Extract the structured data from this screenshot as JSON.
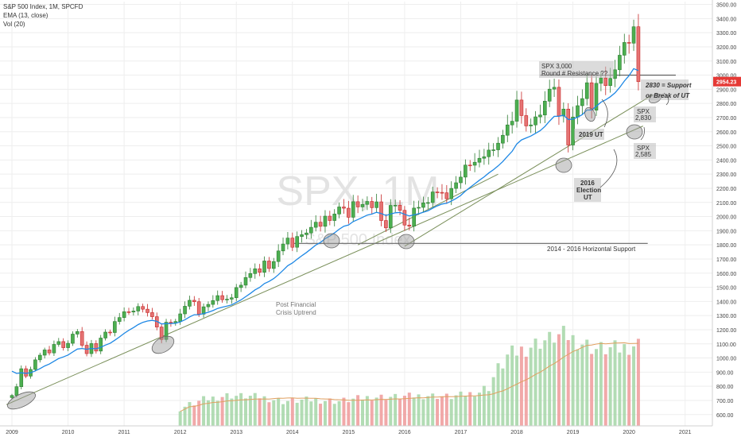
{
  "header": {
    "symbol_line": "S&P 500 Index, 1M, SPCFD",
    "ema_line": "EMA (13, close)",
    "vol_line": "Vol (20)"
  },
  "watermark": {
    "main": "SPX, 1M",
    "sub": "S&P 500 Index"
  },
  "colors": {
    "up": "#2e7d32",
    "up_fill": "#4caf50",
    "down": "#c62828",
    "down_fill": "#e57373",
    "ema": "#1e88e5",
    "trend": "#7a8f5a",
    "vol_up": "#a5d6a7",
    "vol_down": "#ef9a9a",
    "vol_ma": "#e0a060",
    "price_tag": "#e53935",
    "grid": "#eeeeee"
  },
  "chart_data": {
    "type": "candlestick",
    "y_ticks": [
      "600.00",
      "700.00",
      "800.00",
      "900.00",
      "1000.00",
      "1100.00",
      "1200.00",
      "1300.00",
      "1400.00",
      "1500.00",
      "1600.00",
      "1700.00",
      "1800.00",
      "1900.00",
      "2000.00",
      "2100.00",
      "2200.00",
      "2300.00",
      "2400.00",
      "2500.00",
      "2600.00",
      "2700.00",
      "2800.00",
      "2900.00",
      "3000.00",
      "3100.00",
      "3200.00",
      "3300.00",
      "3400.00",
      "3500.00"
    ],
    "x_ticks": [
      "2009",
      "2010",
      "2011",
      "2012",
      "2013",
      "2014",
      "2015",
      "2016",
      "2017",
      "2018",
      "2019",
      "2020",
      "2021"
    ],
    "last_price": "2954.23",
    "ylim": [
      520,
      3520
    ],
    "closes": [
      735,
      797,
      924,
      872,
      919,
      987,
      1020,
      1057,
      1036,
      1096,
      1116,
      1073,
      1104,
      1169,
      1187,
      1090,
      1031,
      1102,
      1049,
      1141,
      1183,
      1180,
      1258,
      1286,
      1327,
      1325,
      1332,
      1364,
      1345,
      1321,
      1292,
      1219,
      1131,
      1253,
      1247,
      1258,
      1312,
      1366,
      1408,
      1398,
      1310,
      1362,
      1379,
      1406,
      1441,
      1412,
      1416,
      1426,
      1498,
      1515,
      1569,
      1597,
      1631,
      1606,
      1686,
      1633,
      1682,
      1757,
      1806,
      1848,
      1783,
      1859,
      1872,
      1884,
      1924,
      1960,
      1931,
      2003,
      1972,
      2018,
      2068,
      2059,
      1995,
      2105,
      2068,
      2086,
      2107,
      2063,
      2104,
      1972,
      1920,
      2079,
      2080,
      2044,
      1940,
      1932,
      2060,
      2065,
      2097,
      2099,
      2174,
      2171,
      2168,
      2126,
      2199,
      2239,
      2279,
      2364,
      2363,
      2384,
      2412,
      2423,
      2470,
      2472,
      2519,
      2575,
      2648,
      2674,
      2824,
      2714,
      2641,
      2648,
      2705,
      2718,
      2816,
      2901,
      2914,
      2711,
      2760,
      2506,
      2704,
      2784,
      2834,
      2946,
      2752,
      2942,
      2980,
      2926,
      2977,
      3038,
      3141,
      3231,
      3226,
      3342,
      2954
    ],
    "ema": {
      "period": 13,
      "source": "close"
    },
    "volume_scale": {
      "ylim": [
        520,
        1320
      ]
    },
    "volume": [
      {
        "month": "2012-01",
        "v": 640
      },
      {
        "month": "2012-06",
        "v": 700
      },
      {
        "month": "2012-11",
        "v": 730
      },
      {
        "month": "2013-06",
        "v": 720
      },
      {
        "month": "2013-11",
        "v": 690
      },
      {
        "month": "2014-06",
        "v": 700
      },
      {
        "month": "2014-11",
        "v": 690
      },
      {
        "month": "2015-06",
        "v": 720
      },
      {
        "month": "2015-11",
        "v": 720
      },
      {
        "month": "2016-06",
        "v": 730
      },
      {
        "month": "2016-11",
        "v": 720
      },
      {
        "month": "2017-06",
        "v": 760
      },
      {
        "month": "2017-11",
        "v": 1000
      },
      {
        "month": "2018-06",
        "v": 1100
      },
      {
        "month": "2018-11",
        "v": 1150
      },
      {
        "month": "2019-06",
        "v": 1050
      },
      {
        "month": "2019-11",
        "v": 1050
      },
      {
        "month": "2020-02",
        "v": 1080
      }
    ],
    "annotations": {
      "resistance_note": "SPX 3,000",
      "resistance_note2": "Round # Resistance ??",
      "support_note": "2830 = Support",
      "break_note": "or Break of UT",
      "spx_2830": "SPX",
      "spx_2830_val": "2,830",
      "ut_2019": "2019 UT",
      "spx_2585": "SPX",
      "spx_2585_val": "2,585",
      "election_ut_1": "2016",
      "election_ut_2": "Election",
      "election_ut_3": "UT",
      "horizontal_support": "2014 - 2016 Horizontal Support",
      "post_financial_1": "Post Financial",
      "post_financial_2": "Crisis Uptrend"
    }
  }
}
